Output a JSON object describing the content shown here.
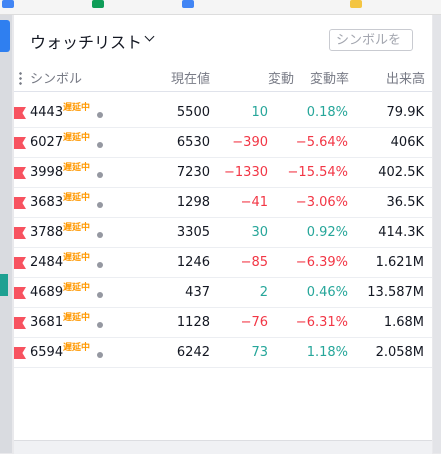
{
  "title": "ウォッチリスト",
  "search_placeholder": "シンボルを",
  "columns": [
    "シンボル",
    "現在値",
    "変動",
    "変動率",
    "出来高"
  ],
  "rows": [
    {
      "symbol": "4443",
      "status": "遅延中",
      "price": "5500",
      "change": "10",
      "change_pct": "0.18%",
      "volume": "79.9K",
      "direction": "up"
    },
    {
      "symbol": "6027",
      "status": "遅延中",
      "price": "6530",
      "change": "−390",
      "change_pct": "−5.64%",
      "volume": "406K",
      "direction": "down"
    },
    {
      "symbol": "3998",
      "status": "遅延中",
      "price": "7230",
      "change": "−1330",
      "change_pct": "−15.54%",
      "volume": "402.5K",
      "direction": "down"
    },
    {
      "symbol": "3683",
      "status": "遅延中",
      "price": "1298",
      "change": "−41",
      "change_pct": "−3.06%",
      "volume": "36.5K",
      "direction": "down"
    },
    {
      "symbol": "3788",
      "status": "遅延中",
      "price": "3305",
      "change": "30",
      "change_pct": "0.92%",
      "volume": "414.3K",
      "direction": "up"
    },
    {
      "symbol": "2484",
      "status": "遅延中",
      "price": "1246",
      "change": "−85",
      "change_pct": "−6.39%",
      "volume": "1.621M",
      "direction": "down"
    },
    {
      "symbol": "4689",
      "status": "遅延中",
      "price": "437",
      "change": "2",
      "change_pct": "0.46%",
      "volume": "13.587M",
      "direction": "up"
    },
    {
      "symbol": "3681",
      "status": "遅延中",
      "price": "1128",
      "change": "−76",
      "change_pct": "−6.31%",
      "volume": "1.68M",
      "direction": "down"
    },
    {
      "symbol": "6594",
      "status": "遅延中",
      "price": "6242",
      "change": "73",
      "change_pct": "1.18%",
      "volume": "2.058M",
      "direction": "up"
    }
  ]
}
